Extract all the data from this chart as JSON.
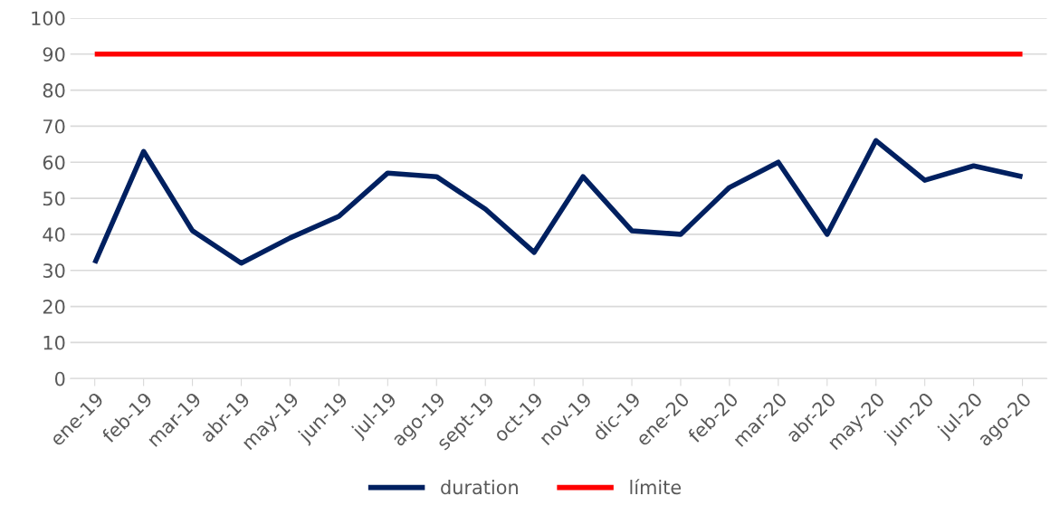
{
  "chart_data": {
    "type": "line",
    "categories": [
      "ene-19",
      "feb-19",
      "mar-19",
      "abr-19",
      "may-19",
      "jun-19",
      "jul-19",
      "ago-19",
      "sept-19",
      "oct-19",
      "nov-19",
      "dic-19",
      "ene-20",
      "feb-20",
      "mar-20",
      "abr-20",
      "may-20",
      "jun-20",
      "jul-20",
      "ago-20"
    ],
    "series": [
      {
        "name": "duration",
        "color": "#002060",
        "values": [
          32,
          63,
          41,
          32,
          39,
          45,
          57,
          56,
          47,
          35,
          56,
          41,
          40,
          53,
          60,
          40,
          66,
          55,
          59,
          56
        ]
      },
      {
        "name": "límite",
        "color": "#ff0000",
        "values": [
          90,
          90,
          90,
          90,
          90,
          90,
          90,
          90,
          90,
          90,
          90,
          90,
          90,
          90,
          90,
          90,
          90,
          90,
          90,
          90
        ]
      }
    ],
    "ylim": [
      0,
      100
    ],
    "yticks": [
      0,
      10,
      20,
      30,
      40,
      50,
      60,
      70,
      80,
      90,
      100
    ],
    "grid": "y",
    "legend": "bottom",
    "marker": "none",
    "line_style": "solid"
  }
}
